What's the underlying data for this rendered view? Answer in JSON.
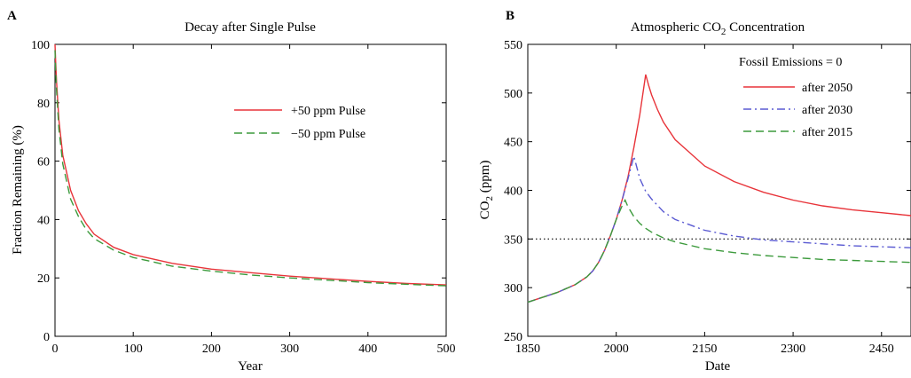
{
  "colors": {
    "red": "#e8343a",
    "blue": "#5a5ad2",
    "green": "#3c9a3c",
    "black": "#000000"
  },
  "chart_data": [
    {
      "panel": "A",
      "type": "line",
      "title": "Decay after Single Pulse",
      "xlabel": "Year",
      "ylabel": "Fraction Remaining (%)",
      "xlim": [
        0,
        500
      ],
      "ylim": [
        0,
        100
      ],
      "xticks": [
        0,
        100,
        200,
        300,
        400,
        500
      ],
      "yticks": [
        0,
        20,
        40,
        60,
        80,
        100
      ],
      "legend_position": "top-right",
      "series": [
        {
          "name": "+50 ppm Pulse",
          "color": "red",
          "dash": "solid",
          "x": [
            0,
            1,
            2,
            5,
            10,
            20,
            30,
            40,
            50,
            75,
            100,
            150,
            200,
            250,
            300,
            350,
            400,
            450,
            500
          ],
          "y": [
            100,
            93,
            87,
            74,
            62,
            50,
            43,
            38.5,
            35,
            30.5,
            28,
            25,
            23,
            21.8,
            20.6,
            19.7,
            18.8,
            18.1,
            17.6
          ]
        },
        {
          "name": "−50 ppm Pulse",
          "color": "green",
          "dash": "dashed",
          "x": [
            0,
            1,
            2,
            5,
            10,
            20,
            30,
            40,
            50,
            75,
            100,
            150,
            200,
            250,
            300,
            350,
            400,
            450,
            500
          ],
          "y": [
            98,
            90,
            84,
            71,
            59,
            47,
            41,
            36.5,
            33.5,
            29.5,
            27,
            24,
            22.3,
            21,
            20,
            19.2,
            18.4,
            17.8,
            17.3
          ]
        }
      ]
    },
    {
      "panel": "B",
      "type": "line",
      "title": "Atmospheric CO",
      "title_sub": "2",
      "title_end": " Concentration",
      "xlabel": "Date",
      "ylabel": "CO",
      "ylabel_sub": "2",
      "ylabel_end": " (ppm)",
      "xlim": [
        1850,
        2500
      ],
      "ylim": [
        250,
        550
      ],
      "xticks": [
        1850,
        2000,
        2150,
        2300,
        2450
      ],
      "yticks": [
        250,
        300,
        350,
        400,
        450,
        500,
        550
      ],
      "legend_title": "Fossil Emissions = 0",
      "legend_position": "top-right",
      "reference_line": {
        "y": 350,
        "style": "dotted",
        "color": "black"
      },
      "series": [
        {
          "name": "after 2050",
          "color": "red",
          "dash": "solid",
          "x": [
            1850,
            1900,
            1930,
            1950,
            1960,
            1970,
            1980,
            1990,
            2000,
            2010,
            2020,
            2030,
            2040,
            2050,
            2055,
            2060,
            2070,
            2080,
            2100,
            2150,
            2200,
            2250,
            2300,
            2350,
            2400,
            2450,
            2500
          ],
          "y": [
            285,
            295,
            303,
            311,
            317,
            326,
            338,
            353,
            370,
            390,
            414,
            444,
            478,
            519,
            508,
            498,
            483,
            470,
            452,
            425,
            409,
            398,
            390,
            384,
            380,
            377,
            374
          ]
        },
        {
          "name": "after 2030",
          "color": "blue",
          "dash": "dashdot",
          "x": [
            1850,
            1900,
            1930,
            1950,
            1960,
            1970,
            1980,
            1990,
            2000,
            2010,
            2020,
            2030,
            2040,
            2050,
            2060,
            2080,
            2100,
            2150,
            2200,
            2250,
            2300,
            2350,
            2400,
            2450,
            2500
          ],
          "y": [
            285,
            295,
            303,
            311,
            317,
            326,
            338,
            353,
            370,
            390,
            412,
            435,
            412,
            399,
            391,
            378,
            370,
            359,
            353,
            349,
            347,
            345,
            343,
            342,
            341
          ]
        },
        {
          "name": "after 2015",
          "color": "green",
          "dash": "dashed",
          "x": [
            1850,
            1900,
            1930,
            1950,
            1960,
            1970,
            1980,
            1990,
            2000,
            2010,
            2015,
            2020,
            2030,
            2040,
            2050,
            2060,
            2080,
            2100,
            2150,
            2200,
            2250,
            2300,
            2350,
            2400,
            2450,
            2500
          ],
          "y": [
            285,
            295,
            303,
            311,
            317,
            326,
            338,
            353,
            370,
            384,
            390,
            383,
            373,
            366,
            361,
            357,
            351,
            347,
            340,
            336,
            333,
            331,
            329,
            328,
            327,
            326
          ]
        }
      ]
    }
  ]
}
